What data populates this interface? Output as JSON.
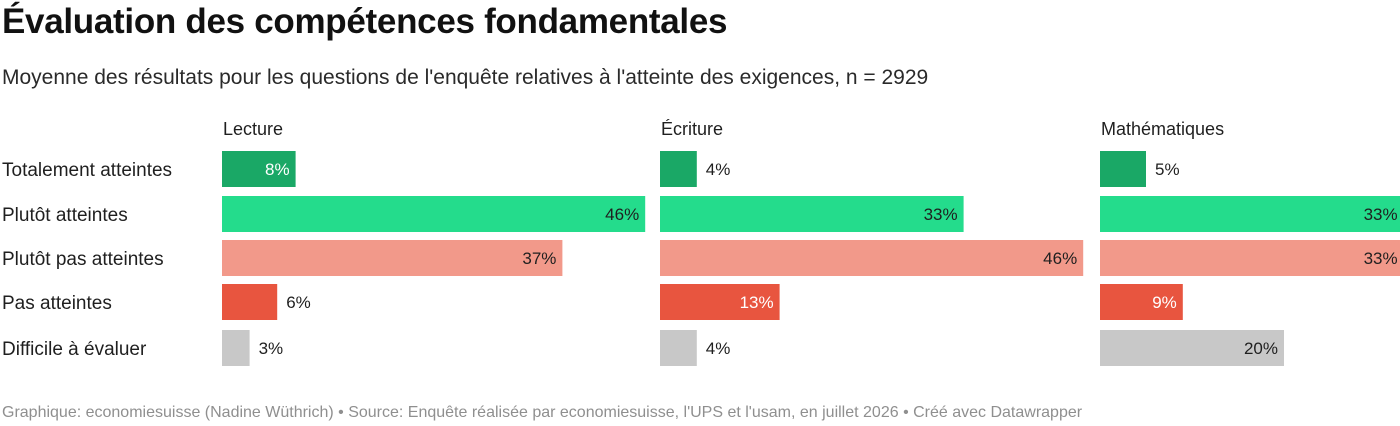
{
  "title": "Évaluation des compétences fondamentales",
  "subtitle": "Moyenne des résultats pour les questions de l'enquête relatives à l'atteinte des exigences, n = 2929",
  "footer": "Graphique: economiesuisse (Nadine Wüthrich) • Source: Enquête réalisée par economiesuisse, l'UPS et l'usam, en juillet 2026 • Créé avec Datawrapper",
  "chart_data": {
    "type": "bar",
    "orientation": "horizontal",
    "unit": "%",
    "categories": [
      "Totalement atteintes",
      "Plutôt atteintes",
      "Plutôt pas atteintes",
      "Pas atteintes",
      "Difficile à évaluer"
    ],
    "category_colors": [
      "#1aa866",
      "#24dc8c",
      "#f2998a",
      "#e8553f",
      "#c8c8c8"
    ],
    "label_colors": [
      "#ffffff",
      "#1f1f1f",
      "#1f1f1f",
      "#ffffff",
      "#1f1f1f"
    ],
    "xlim": [
      0,
      50
    ],
    "panels": [
      {
        "name": "Lecture",
        "values": [
          8,
          46,
          37,
          6,
          3
        ],
        "labels": [
          "8%",
          "46%",
          "37%",
          "6%",
          "3%"
        ]
      },
      {
        "name": "Écriture",
        "values": [
          4,
          33,
          46,
          13,
          4
        ],
        "labels": [
          "4%",
          "33%",
          "46%",
          "13%",
          "4%"
        ]
      },
      {
        "name": "Mathématiques",
        "values": [
          5,
          33,
          33,
          9,
          20
        ],
        "labels": [
          "5%",
          "33%",
          "33%",
          "9%",
          "20%"
        ]
      }
    ]
  }
}
